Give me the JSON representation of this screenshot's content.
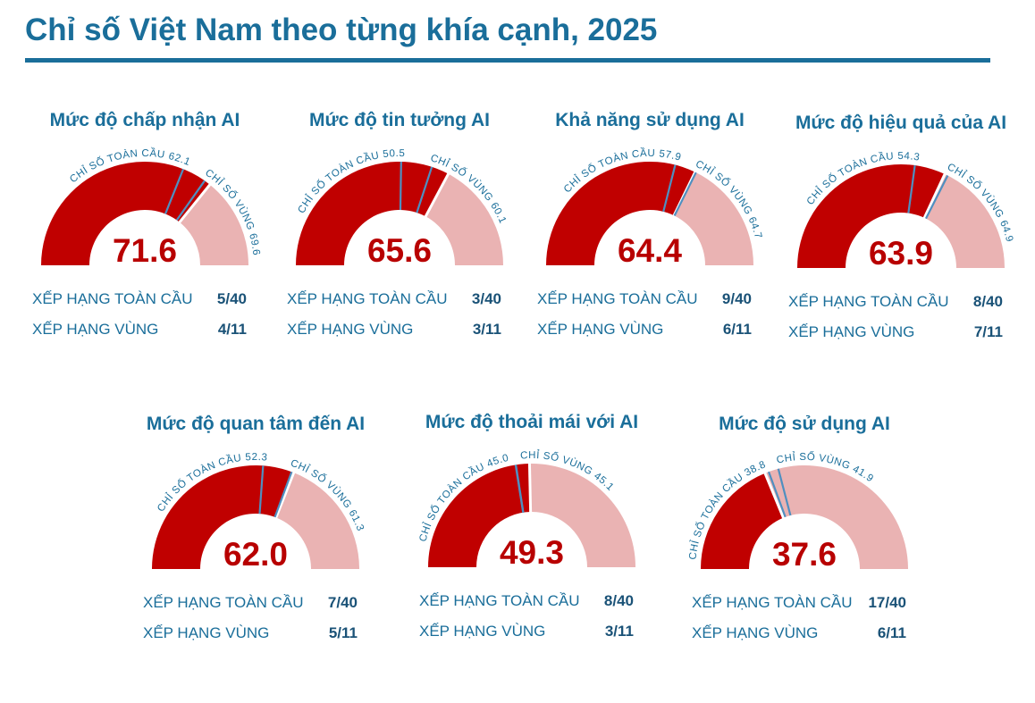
{
  "title": "Chỉ số Việt Nam theo từng khía cạnh, 2025",
  "colors": {
    "title": "#1a6e9a",
    "fill": "#c00000",
    "remainder": "#eab3b3",
    "marker": "#4f8fc0",
    "annotation": "#1a6e9a",
    "value": "#b80000",
    "rank_value": "#1a5277"
  },
  "labels": {
    "global_index": "CHỈ SỐ TOÀN CẦU",
    "regional_index": "CHỈ SỐ VÙNG",
    "global_rank": "XẾP HẠNG TOÀN CẦU",
    "regional_rank": "XẾP HẠNG VÙNG"
  },
  "chart_data": [
    {
      "type": "gauge",
      "title": "Mức độ chấp nhận AI",
      "value": 71.6,
      "value_label": "71.6",
      "range": [
        0,
        100
      ],
      "global_index": 62.1,
      "global_index_label": "62.1",
      "regional_index": 69.6,
      "regional_index_label": "69.6",
      "global_rank": "5/40",
      "regional_rank": "4/11"
    },
    {
      "type": "gauge",
      "title": "Mức độ tin tưởng AI",
      "value": 65.6,
      "value_label": "65.6",
      "range": [
        0,
        100
      ],
      "global_index": 50.5,
      "global_index_label": "50.5",
      "regional_index": 60.1,
      "regional_index_label": "60.1",
      "global_rank": "3/40",
      "regional_rank": "3/11"
    },
    {
      "type": "gauge",
      "title": "Khả năng sử dụng AI",
      "value": 64.4,
      "value_label": "64.4",
      "range": [
        0,
        100
      ],
      "global_index": 57.9,
      "global_index_label": "57.9",
      "regional_index": 64.7,
      "regional_index_label": "64.7",
      "global_rank": "9/40",
      "regional_rank": "6/11"
    },
    {
      "type": "gauge",
      "title": "Mức độ hiệu quả của AI",
      "value": 63.9,
      "value_label": "63.9",
      "range": [
        0,
        100
      ],
      "global_index": 54.3,
      "global_index_label": "54.3",
      "regional_index": 64.9,
      "regional_index_label": "64.9",
      "global_rank": "8/40",
      "regional_rank": "7/11"
    },
    {
      "type": "gauge",
      "title": "Mức độ quan tâm đến AI",
      "value": 62.0,
      "value_label": "62.0",
      "range": [
        0,
        100
      ],
      "global_index": 52.3,
      "global_index_label": "52.3",
      "regional_index": 61.3,
      "regional_index_label": "61.3",
      "global_rank": "7/40",
      "regional_rank": "5/11"
    },
    {
      "type": "gauge",
      "title": "Mức độ thoải mái với AI",
      "value": 49.3,
      "value_label": "49.3",
      "range": [
        0,
        100
      ],
      "global_index": 45.0,
      "global_index_label": "45.0",
      "regional_index": 45.1,
      "regional_index_label": "45.1",
      "global_rank": "8/40",
      "regional_rank": "3/11"
    },
    {
      "type": "gauge",
      "title": "Mức độ sử dụng AI",
      "value": 37.6,
      "value_label": "37.6",
      "range": [
        0,
        100
      ],
      "global_index": 38.8,
      "global_index_label": "38.8",
      "regional_index": 41.9,
      "regional_index_label": "41.9",
      "global_rank": "17/40",
      "regional_rank": "6/11"
    }
  ]
}
